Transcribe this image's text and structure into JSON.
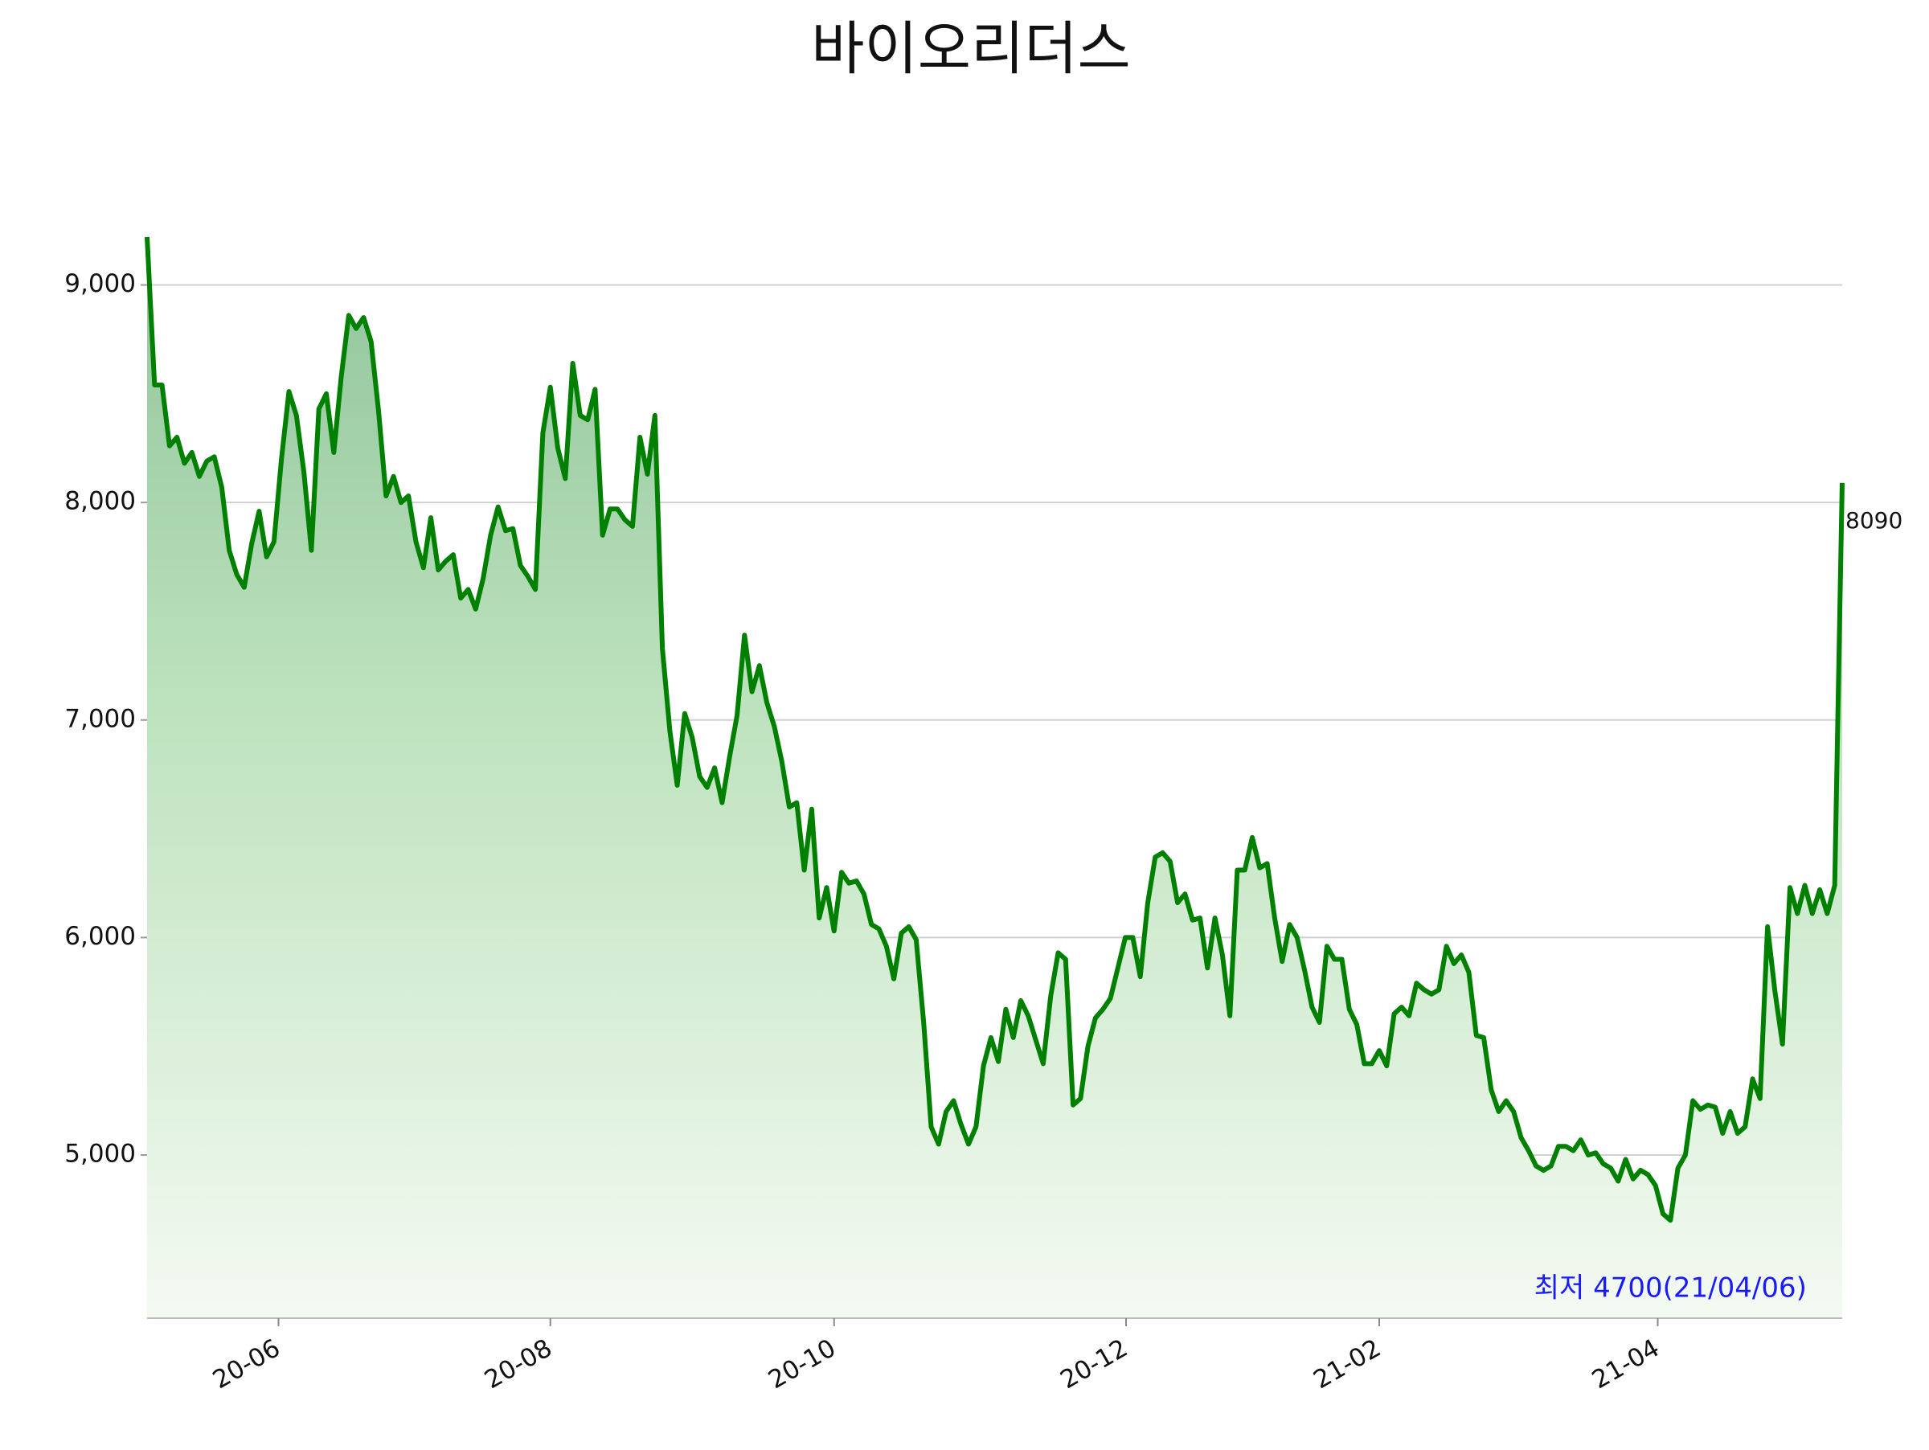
{
  "chart_data": {
    "type": "line",
    "title": "바이오리더스",
    "color": "#008000",
    "grid": true,
    "end_label": "8090",
    "min_label": "최저 4700(21/04/06)",
    "xlim": [
      0,
      227
    ],
    "xticks": [
      {
        "value": 17.6,
        "label": "20-06"
      },
      {
        "value": 54,
        "label": "20-08"
      },
      {
        "value": 92,
        "label": "20-10"
      },
      {
        "value": 131.1,
        "label": "20-12"
      },
      {
        "value": 165,
        "label": "21-02"
      },
      {
        "value": 202.3,
        "label": "21-04"
      }
    ],
    "ylim": [
      4250,
      9220
    ],
    "yticks": [
      {
        "value": 5000,
        "label": "5,000"
      },
      {
        "value": 6000,
        "label": "6,000"
      },
      {
        "value": 7000,
        "label": "7,000"
      },
      {
        "value": 8000,
        "label": "8,000"
      },
      {
        "value": 9000,
        "label": "9,000"
      }
    ],
    "values": [
      9220,
      8540,
      8540,
      8260,
      8300,
      8180,
      8230,
      8120,
      8190,
      8210,
      8070,
      7780,
      7670,
      7610,
      7810,
      7960,
      7750,
      7820,
      8200,
      8510,
      8400,
      8140,
      7780,
      8430,
      8500,
      8230,
      8580,
      8860,
      8800,
      8850,
      8740,
      8420,
      8030,
      8120,
      8000,
      8030,
      7820,
      7700,
      7930,
      7690,
      7730,
      7760,
      7560,
      7600,
      7510,
      7650,
      7850,
      7980,
      7870,
      7880,
      7710,
      7660,
      7600,
      8320,
      8530,
      8250,
      8110,
      8640,
      8400,
      8380,
      8520,
      7850,
      7970,
      7970,
      7920,
      7890,
      8300,
      8130,
      8400,
      7330,
      6950,
      6700,
      7030,
      6920,
      6740,
      6690,
      6780,
      6620,
      6830,
      7020,
      7390,
      7130,
      7250,
      7080,
      6970,
      6810,
      6600,
      6620,
      6310,
      6590,
      6090,
      6230,
      6030,
      6300,
      6250,
      6260,
      6200,
      6060,
      6040,
      5960,
      5810,
      6020,
      6050,
      5990,
      5610,
      5130,
      5050,
      5200,
      5250,
      5140,
      5050,
      5130,
      5410,
      5540,
      5430,
      5670,
      5540,
      5710,
      5640,
      5530,
      5420,
      5730,
      5930,
      5900,
      5230,
      5260,
      5500,
      5630,
      5670,
      5720,
      5860,
      6000,
      6000,
      5820,
      6160,
      6370,
      6390,
      6350,
      6160,
      6200,
      6080,
      6090,
      5860,
      6090,
      5920,
      5640,
      6310,
      6310,
      6460,
      6320,
      6340,
      6090,
      5890,
      6060,
      6000,
      5850,
      5680,
      5610,
      5960,
      5900,
      5900,
      5670,
      5600,
      5420,
      5420,
      5480,
      5410,
      5650,
      5680,
      5640,
      5790,
      5760,
      5740,
      5760,
      5960,
      5880,
      5920,
      5840,
      5550,
      5540,
      5300,
      5200,
      5250,
      5200,
      5080,
      5020,
      4950,
      4930,
      4950,
      5040,
      5040,
      5020,
      5070,
      5000,
      5010,
      4960,
      4940,
      4880,
      4980,
      4890,
      4930,
      4910,
      4860,
      4730,
      4700,
      4940,
      5000,
      5250,
      5210,
      5230,
      5220,
      5100,
      5200,
      5100,
      5130,
      5350,
      5260,
      6050,
      5750,
      5510,
      6230,
      6110,
      6240,
      6110,
      6220,
      6110,
      6240,
      8090
    ]
  }
}
